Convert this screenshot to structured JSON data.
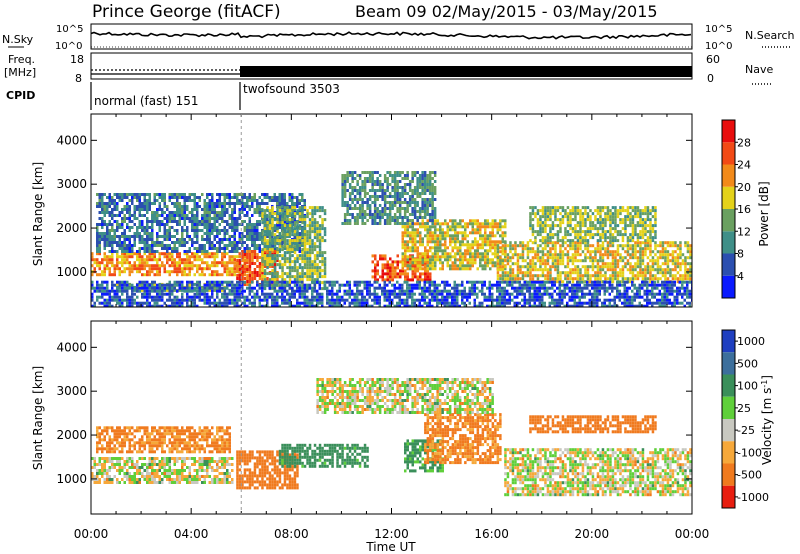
{
  "header": {
    "station": "Prince George (fitACF)",
    "beam_info": "Beam 09  02/May/2015 - 03/May/2015"
  },
  "strips": {
    "nsky_label": "N.Sky",
    "nsky_ticks": [
      "10^5",
      "10^0"
    ],
    "nsearch_label": "N.Search",
    "nsearch_ticks": [
      "10^5",
      "10^0"
    ],
    "freq_label_1": "Freq.",
    "freq_label_2": "[MHz]",
    "freq_ticks": [
      "18",
      "8"
    ],
    "nave_label": "Nave",
    "nave_ticks": [
      "60",
      "0"
    ],
    "cpid_label": "CPID",
    "cpid_segments": [
      {
        "name": "normal (fast) 151",
        "start_hour": 0,
        "end_hour": 6
      },
      {
        "name": "twofsound 3503",
        "start_hour": 6,
        "end_hour": 24
      }
    ]
  },
  "chart_data": [
    {
      "type": "heatmap",
      "panel": "power",
      "ylabel": "Slant Range [km]",
      "xlim": [
        0,
        24
      ],
      "ylim": [
        200,
        4600
      ],
      "yticks": [
        1000,
        2000,
        3000,
        4000
      ],
      "colorbar": {
        "label": "Power [dB]",
        "ticks": [
          4,
          8,
          12,
          16,
          20,
          24,
          28
        ],
        "range": [
          0,
          32
        ],
        "colors": [
          "#0a1aff",
          "#2b4fb0",
          "#3f8f88",
          "#6aa060",
          "#e4d21a",
          "#f28a1a",
          "#f24a16",
          "#e80d0d"
        ]
      },
      "echo_regions": [
        {
          "x": [
            0,
            6.2
          ],
          "y": [
            950,
            1450
          ],
          "value": 22
        },
        {
          "x": [
            1,
            5.5
          ],
          "y": [
            550,
            750
          ],
          "value": 14
        },
        {
          "x": [
            0.2,
            8.5
          ],
          "y": [
            1450,
            2800
          ],
          "value": 8
        },
        {
          "x": [
            5.8,
            7.4
          ],
          "y": [
            700,
            1500
          ],
          "value": 26
        },
        {
          "x": [
            6.8,
            9.3
          ],
          "y": [
            600,
            2500
          ],
          "value": 14
        },
        {
          "x": [
            11.2,
            13.5
          ],
          "y": [
            850,
            1400
          ],
          "value": 26
        },
        {
          "x": [
            12.4,
            16.5
          ],
          "y": [
            1100,
            2200
          ],
          "value": 18
        },
        {
          "x": [
            10,
            13.7
          ],
          "y": [
            2100,
            3300
          ],
          "value": 11
        },
        {
          "x": [
            16.2,
            24
          ],
          "y": [
            800,
            1700
          ],
          "value": 18
        },
        {
          "x": [
            17.5,
            22.5
          ],
          "y": [
            1700,
            2500
          ],
          "value": 15
        },
        {
          "x": [
            0,
            24
          ],
          "y": [
            200,
            800
          ],
          "value": 6
        }
      ]
    },
    {
      "type": "heatmap",
      "panel": "velocity",
      "xlabel": "Time UT",
      "ylabel": "Slant Range [km]",
      "xlim": [
        0,
        24
      ],
      "ylim": [
        200,
        4600
      ],
      "xticks": [
        "00:00",
        "04:00",
        "08:00",
        "12:00",
        "16:00",
        "20:00",
        "00:00"
      ],
      "yticks": [
        1000,
        2000,
        3000,
        4000
      ],
      "colorbar": {
        "label": "Velocity [m s^-1]",
        "ticks": [
          "1000",
          "500",
          "100",
          "25",
          "-25",
          "-100",
          "-500",
          "-1000"
        ],
        "colors": [
          "#1f3fc0",
          "#3c6f9c",
          "#3a8f5a",
          "#5fcf3a",
          "#c8c8c0",
          "#f6a83a",
          "#f07a1e",
          "#e81e10"
        ]
      },
      "echo_regions": [
        {
          "x": [
            0,
            5.6
          ],
          "y": [
            950,
            1500
          ],
          "value": 0
        },
        {
          "x": [
            0.2,
            5.5
          ],
          "y": [
            1650,
            2200
          ],
          "value": -150
        },
        {
          "x": [
            5.8,
            8.2
          ],
          "y": [
            800,
            1650
          ],
          "value": -300
        },
        {
          "x": [
            7.5,
            11
          ],
          "y": [
            1300,
            1800
          ],
          "value": 200
        },
        {
          "x": [
            12.5,
            14
          ],
          "y": [
            1200,
            1900
          ],
          "value": 150
        },
        {
          "x": [
            13.3,
            16.3
          ],
          "y": [
            1400,
            2500
          ],
          "value": -150
        },
        {
          "x": [
            16.5,
            24
          ],
          "y": [
            650,
            1700
          ],
          "value": 0
        },
        {
          "x": [
            17.5,
            22.5
          ],
          "y": [
            2050,
            2450
          ],
          "value": -300
        },
        {
          "x": [
            9,
            16
          ],
          "y": [
            2500,
            3300
          ],
          "value": 0
        }
      ]
    }
  ]
}
